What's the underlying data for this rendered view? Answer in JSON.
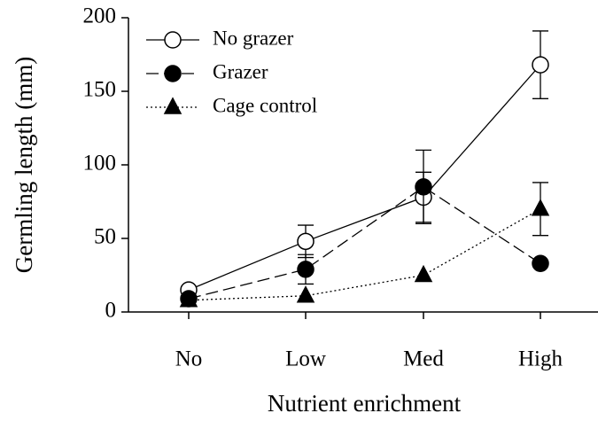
{
  "chart_data": {
    "type": "line",
    "xlabel": "Nutrient enrichment",
    "ylabel": "Germling length (mm)",
    "categories": [
      "No",
      "Low",
      "Med",
      "High"
    ],
    "ylim": [
      0,
      200
    ],
    "yticks": [
      0,
      50,
      100,
      150,
      200
    ],
    "legend": "upper left",
    "series": [
      {
        "name": "No grazer",
        "color": "#000000",
        "marker": "open-circle",
        "line_style": "solid",
        "values": [
          15,
          48,
          78,
          168
        ],
        "errors": [
          2,
          11,
          17,
          23
        ]
      },
      {
        "name": "Grazer",
        "color": "#000000",
        "marker": "filled-circle",
        "line_style": "dashed",
        "values": [
          9,
          29,
          85,
          33
        ],
        "errors": [
          1,
          10,
          25,
          1
        ]
      },
      {
        "name": "Cage control",
        "color": "#000000",
        "marker": "filled-triangle",
        "line_style": "dotted",
        "values": [
          8,
          11,
          25,
          70
        ],
        "errors": [
          0,
          0,
          0,
          18
        ]
      }
    ]
  }
}
